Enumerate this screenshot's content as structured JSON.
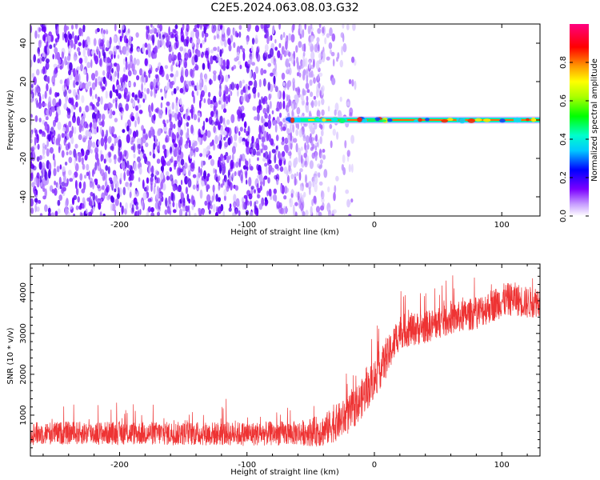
{
  "title": "C2E5.2024.063.08.03.G32",
  "chart_data": [
    {
      "type": "heatmap",
      "xlabel": "Height of straight line (km)",
      "ylabel": "Frequency (Hz)",
      "xlim": [
        -270,
        130
      ],
      "ylim": [
        -50,
        50
      ],
      "x_ticks": [
        -200,
        -100,
        0,
        100
      ],
      "x_tick_labels": [
        "-200",
        "-100",
        "0",
        "100"
      ],
      "y_ticks": [
        -40,
        -20,
        0,
        20,
        40
      ],
      "y_tick_labels": [
        "-40",
        "-20",
        "0",
        "20",
        "40"
      ],
      "noise_region_x": [
        -270,
        -40
      ],
      "signal_band": {
        "x": [
          -70,
          130
        ],
        "frequency": 0
      },
      "colorbar": {
        "label": "Normalized spectral amplitude",
        "range": [
          0,
          1
        ],
        "ticks": [
          0,
          0.2,
          0.4,
          0.6,
          0.8
        ],
        "tick_labels": [
          "0.0",
          "0.2",
          "0.4",
          "0.6",
          "0.8"
        ],
        "colormap": [
          "#ffffff",
          "#7b00ff",
          "#0000ff",
          "#00ffff",
          "#00ff00",
          "#ffff00",
          "#ff7f00",
          "#ff0000",
          "#ff0080"
        ]
      },
      "grid": false
    },
    {
      "type": "line",
      "xlabel": "Height of straight line (km)",
      "ylabel": "SNR (10 * v/v)",
      "xlim": [
        -270,
        130
      ],
      "ylim": [
        0,
        4700
      ],
      "x_ticks": [
        -200,
        -100,
        0,
        100
      ],
      "x_tick_labels": [
        "-200",
        "-100",
        "0",
        "100"
      ],
      "y_ticks": [
        1000,
        2000,
        3000,
        4000
      ],
      "y_tick_labels": [
        "1000",
        "2000",
        "3000",
        "4000"
      ],
      "color": "#ee3333",
      "trend": {
        "x": [
          -270,
          -250,
          -200,
          -150,
          -100,
          -60,
          -40,
          -20,
          -10,
          0,
          10,
          20,
          40,
          60,
          80,
          100,
          110,
          120,
          130
        ],
        "y": [
          550,
          560,
          560,
          550,
          540,
          560,
          620,
          1000,
          1400,
          1900,
          2400,
          3050,
          3150,
          3350,
          3500,
          3800,
          3850,
          3750,
          3800
        ]
      },
      "noise_amplitude": [
        [
          -270,
          280
        ],
        [
          -60,
          300
        ],
        [
          -30,
          450
        ],
        [
          0,
          500
        ],
        [
          20,
          420
        ],
        [
          60,
          380
        ],
        [
          100,
          420
        ],
        [
          130,
          380
        ]
      ],
      "grid": false
    }
  ]
}
